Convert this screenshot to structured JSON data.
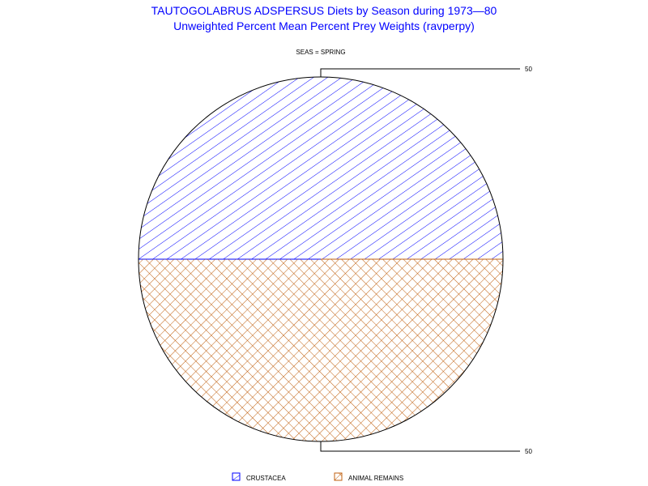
{
  "chart_data": {
    "type": "pie",
    "title": "TAUTOGOLABRUS ADSPERSUS Diets by Season during 1973—80",
    "subtitle": "Unweighted Percent Mean Percent Prey  Weights (ravperpy)",
    "group_label": "SEAS = SPRING",
    "slices": [
      {
        "name": "CRUSTACEA",
        "value": 50,
        "label": "50",
        "color": "#0000ff",
        "pattern": "diagonal-hatch"
      },
      {
        "name": "ANIMAL REMAINS",
        "value": 50,
        "label": "50",
        "color": "#c06010",
        "pattern": "cross-hatch"
      }
    ],
    "legend_position": "bottom"
  }
}
